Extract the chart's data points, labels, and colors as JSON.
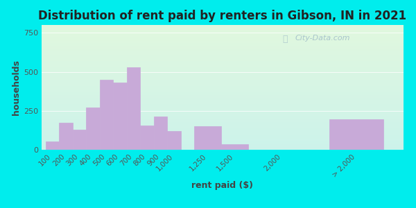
{
  "title": "Distribution of rent paid by renters in Gibson, IN in 2021",
  "xlabel": "rent paid ($)",
  "ylabel": "households",
  "bar_color": "#c8aad8",
  "bar_edge_color": "#c8aad8",
  "background_outer": "#00eded",
  "yticks": [
    0,
    250,
    500,
    750
  ],
  "ylim": [
    0,
    800
  ],
  "categories": [
    "100",
    "200",
    "300",
    "400",
    "500",
    "600",
    "700",
    "800",
    "900",
    "1,000",
    "1,250",
    "1,500",
    "2,000",
    "> 2,000"
  ],
  "values": [
    55,
    175,
    130,
    270,
    450,
    430,
    530,
    155,
    215,
    120,
    150,
    35,
    0,
    195
  ],
  "bar_positions": [
    0,
    1,
    2,
    3,
    4,
    5,
    6,
    7,
    8,
    9,
    11,
    13,
    17,
    21
  ],
  "bar_widths": [
    1,
    1,
    1,
    1,
    1,
    1,
    1,
    1,
    1,
    1,
    2,
    2,
    1,
    4
  ],
  "watermark": "City-Data.com",
  "title_fontsize": 12,
  "label_fontsize": 9,
  "tick_fontsize": 7.5
}
